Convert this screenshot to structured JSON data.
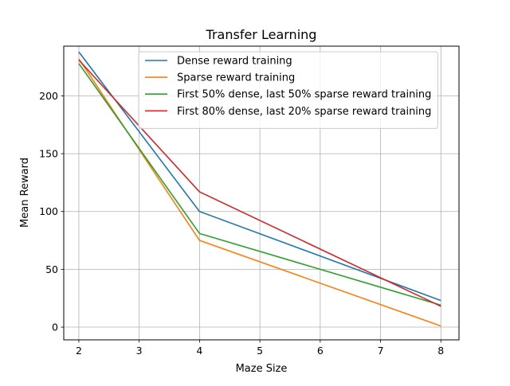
{
  "chart_data": {
    "type": "line",
    "title": "Transfer Learning",
    "xlabel": "Maze Size",
    "ylabel": "Mean Reward",
    "x": [
      2,
      4,
      8
    ],
    "xlim": [
      1.75,
      8.3
    ],
    "ylim": [
      -11,
      243
    ],
    "xticks": [
      "2",
      "3",
      "4",
      "5",
      "6",
      "7",
      "8"
    ],
    "yticks": [
      "0",
      "50",
      "100",
      "150",
      "200"
    ],
    "grid": true,
    "legend_position": "top-right",
    "series": [
      {
        "name": "Dense reward training",
        "color": "#1f77b4",
        "values": [
          238,
          100,
          23
        ]
      },
      {
        "name": "Sparse reward training",
        "color": "#ff7f0e",
        "values": [
          232,
          75,
          1
        ]
      },
      {
        "name": "First 50% dense, last 50% sparse reward training",
        "color": "#2ca02c",
        "values": [
          228,
          81,
          19
        ]
      },
      {
        "name": "First 80% dense, last 20% sparse reward training",
        "color": "#d62728",
        "values": [
          231,
          117,
          18
        ]
      }
    ]
  }
}
